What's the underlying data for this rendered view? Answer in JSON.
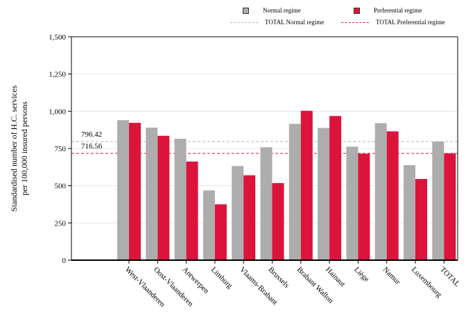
{
  "legend": {
    "normal": "Normal regime",
    "preferential": "Preferential regime",
    "total_normal": "TOTAL Normal regime",
    "total_preferential": "TOTAL Preferential regime"
  },
  "colors": {
    "normal": "#adadad",
    "preferential": "#dc143c",
    "total_normal_line": "#b0b0b0",
    "total_preferential_line": "#dc143c"
  },
  "chart_data": {
    "type": "bar",
    "title": "",
    "xlabel": "",
    "ylabel": "Standardised number of H.C. services per 100,000 insured persons",
    "ylabel_lines": [
      "Standardised number of H.C. services",
      "per 100,000 insured persons"
    ],
    "ylim": [
      0,
      1500
    ],
    "yticks": [
      0,
      250,
      500,
      750,
      1000,
      1250,
      1500
    ],
    "ytick_labels": [
      "0",
      "250",
      "500",
      "750",
      "1,000",
      "1,250",
      "1,500"
    ],
    "categories": [
      "West-Vlaanderen",
      "Oost-Vlaanderen",
      "Antwerpen",
      "Limburg",
      "Vlaams-Brabant",
      "Brussels",
      "Brabant Wallon",
      "Hainaut",
      "Liège",
      "Namur",
      "Luxembourg",
      "TOTAL"
    ],
    "series": [
      {
        "name": "Normal regime",
        "values": [
          940,
          890,
          815,
          468,
          632,
          758,
          915,
          888,
          762,
          920,
          638,
          796
        ]
      },
      {
        "name": "Preferential regime",
        "values": [
          922,
          835,
          662,
          375,
          570,
          518,
          1003,
          968,
          715,
          865,
          545,
          717
        ]
      }
    ],
    "reference_lines": [
      {
        "name": "TOTAL Normal regime",
        "value": 796.42,
        "label": "796.42"
      },
      {
        "name": "TOTAL Preferential regime",
        "value": 716.56,
        "label": "716.56"
      }
    ],
    "grid": true,
    "legend_position": "top-right"
  }
}
